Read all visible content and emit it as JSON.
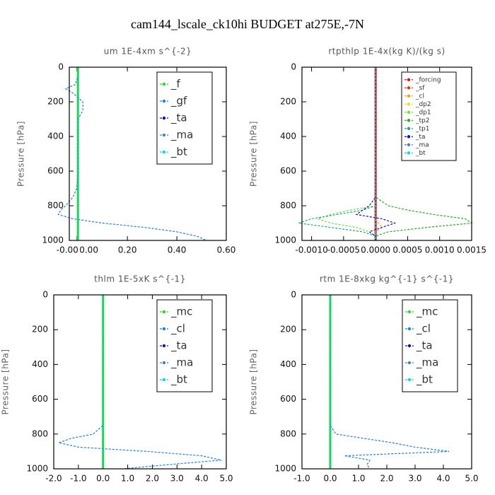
{
  "title": "cam144_lscale_ck10hi  BUDGET at275E,-7N",
  "chart_data": [
    {
      "type": "line",
      "title": "um  1E-4xm s^{-2}",
      "y_label": "Pressure [hPa]",
      "y": [
        0,
        50,
        100,
        125,
        150,
        200,
        250,
        300,
        400,
        500,
        600,
        700,
        750,
        800,
        825,
        850,
        875,
        900,
        925,
        950,
        975,
        1000
      ],
      "xlim": [
        -0.035,
        0.6
      ],
      "xticks": [
        {
          "value": -0.004,
          "label": "-0.00"
        },
        {
          "value": 0,
          "label": "0.00"
        },
        {
          "value": 0.2,
          "label": "0.20"
        },
        {
          "value": 0.4,
          "label": "0.40"
        },
        {
          "value": 0.6,
          "label": "0.60"
        }
      ],
      "ylim": [
        1000,
        0
      ],
      "yticks": [
        0,
        200,
        400,
        600,
        800,
        1000
      ],
      "legend": "upper right",
      "series": [
        {
          "name": "_f",
          "color": "#22dd22",
          "values": [
            0,
            0,
            0,
            0,
            0,
            0,
            0,
            0,
            0,
            0,
            0,
            0,
            0,
            0,
            0,
            0,
            0,
            0,
            0,
            0,
            0,
            0
          ]
        },
        {
          "name": "_gf",
          "color": "#1e7fe8",
          "values": [
            0,
            0,
            -0.01,
            -0.05,
            -0.02,
            0.02,
            0.02,
            0,
            0,
            0,
            0,
            -0.005,
            -0.02,
            -0.05,
            -0.07,
            -0.08,
            -0.02,
            0.1,
            0.27,
            0.4,
            0.48,
            0.52
          ]
        },
        {
          "name": "_ta",
          "color": "#1010c8",
          "values": [
            0,
            0,
            0,
            0,
            0,
            0,
            0,
            0,
            0,
            0,
            0,
            0,
            0,
            0,
            0,
            0,
            0,
            0,
            0,
            0,
            0,
            0
          ]
        },
        {
          "name": "_ma",
          "color": "#4682b4",
          "values": [
            0,
            0,
            0,
            0,
            0,
            0,
            0,
            0,
            0,
            0,
            0,
            0,
            0,
            0,
            0,
            0,
            0,
            0,
            0,
            0,
            0,
            0
          ]
        },
        {
          "name": "_bt",
          "color": "#00d8f0",
          "values": [
            0,
            0,
            0,
            0,
            0,
            0,
            0,
            0,
            0,
            0,
            0,
            0,
            0,
            0,
            0,
            0,
            0,
            0,
            0,
            0,
            0,
            0
          ]
        }
      ]
    },
    {
      "type": "line",
      "title": "rtpthlp  1E-4x(kg K)/(kg s)",
      "y_label": "Pressure [hPa]",
      "y": [
        0,
        50,
        100,
        125,
        150,
        200,
        250,
        300,
        400,
        500,
        600,
        700,
        750,
        800,
        825,
        850,
        875,
        900,
        925,
        950,
        975,
        1000
      ],
      "xlim": [
        -0.00115,
        0.0015
      ],
      "xticks": [
        {
          "value": -0.001,
          "label": "-0.0010"
        },
        {
          "value": -0.0005,
          "label": "-0.0005"
        },
        {
          "value": 0,
          "label": "0.0000"
        },
        {
          "value": 0.0005,
          "label": "0.0005"
        },
        {
          "value": 0.001,
          "label": "0.0010"
        },
        {
          "value": 0.0015,
          "label": "0.0015"
        }
      ],
      "ylim": [
        1000,
        0
      ],
      "yticks": [
        0,
        200,
        400,
        600,
        800,
        1000
      ],
      "legend": "upper right",
      "series": [
        {
          "name": "_forcing",
          "color": "#dd1111",
          "values": [
            0,
            0,
            0,
            0,
            0,
            0,
            0,
            0,
            0,
            0,
            0,
            0,
            0,
            0,
            0,
            0,
            0,
            0,
            0,
            0,
            0,
            0
          ]
        },
        {
          "name": "_sf",
          "color": "#e83010",
          "values": [
            0,
            0,
            0,
            0,
            0,
            0,
            0,
            0,
            0,
            0,
            0,
            0,
            0,
            0,
            0,
            0,
            0,
            0,
            0,
            0,
            0,
            0
          ]
        },
        {
          "name": "_cl",
          "color": "#f0a010",
          "values": [
            0,
            0,
            0,
            0,
            0,
            0,
            0,
            0,
            0,
            0,
            0,
            0,
            0,
            0,
            0,
            0,
            0,
            5e-05,
            0.0001,
            0,
            0,
            0
          ]
        },
        {
          "name": "_dp2",
          "color": "#e8e020",
          "values": [
            0,
            0,
            0,
            0,
            0,
            0,
            0,
            0,
            0,
            0,
            0,
            0,
            0,
            0,
            0,
            0,
            0,
            0,
            0,
            0,
            0,
            0
          ]
        },
        {
          "name": "_dp1",
          "color": "#70e040",
          "values": [
            0,
            0,
            0,
            0,
            0,
            0,
            0,
            0,
            0,
            0,
            0,
            0,
            0,
            0,
            -0.0004,
            -0.0007,
            -0.0009,
            -0.0007,
            -0.0003,
            -0.0001,
            0,
            0
          ]
        },
        {
          "name": "_tp2",
          "color": "#22b022",
          "values": [
            0,
            0,
            0,
            0,
            0,
            0,
            0,
            0,
            0,
            0,
            0,
            0,
            0,
            0.0002,
            0.0005,
            0.0009,
            0.0014,
            0.0015,
            0.0008,
            0.0002,
            0,
            0
          ]
        },
        {
          "name": "_tp1",
          "color": "#20a090",
          "values": [
            0,
            0,
            0,
            0,
            0,
            0,
            0,
            0,
            0,
            0,
            0,
            0,
            0,
            0,
            -0.0002,
            -0.0006,
            -0.001,
            -0.0012,
            -0.0007,
            -0.0002,
            0,
            0
          ]
        },
        {
          "name": "_ta",
          "color": "#1010c8",
          "values": [
            0,
            0,
            0,
            0,
            0,
            0,
            0,
            0,
            0,
            0,
            0,
            0,
            0,
            -0.0001,
            -0.0002,
            -0.0003,
            0.0001,
            0.0003,
            0.0001,
            -0.0001,
            0,
            0
          ]
        },
        {
          "name": "_ma",
          "color": "#4682b4",
          "values": [
            0,
            0,
            0,
            0,
            0,
            0,
            0,
            0,
            0,
            0,
            0,
            0,
            0,
            0,
            0,
            0,
            0,
            0,
            0,
            0,
            0,
            0
          ]
        },
        {
          "name": "_bt",
          "color": "#00d8f0",
          "values": [
            0,
            0,
            0,
            0,
            0,
            0,
            0,
            0,
            0,
            0,
            0,
            0,
            0,
            0,
            0,
            0,
            0,
            0,
            0,
            0,
            0,
            0
          ]
        }
      ]
    },
    {
      "type": "line",
      "title": "thlm  1E-5xK s^{-1}",
      "y_label": "Pressure [hPa]",
      "y": [
        0,
        50,
        100,
        125,
        150,
        200,
        250,
        300,
        400,
        500,
        600,
        700,
        750,
        800,
        825,
        850,
        875,
        900,
        925,
        950,
        975,
        1000
      ],
      "xlim": [
        -2,
        5
      ],
      "xticks": [
        {
          "value": -2,
          "label": "-2.0"
        },
        {
          "value": -1,
          "label": "-1.0"
        },
        {
          "value": 0,
          "label": "0.0"
        },
        {
          "value": 1,
          "label": "1.0"
        },
        {
          "value": 2,
          "label": "2.0"
        },
        {
          "value": 3,
          "label": "3.0"
        },
        {
          "value": 4,
          "label": "4.0"
        },
        {
          "value": 5,
          "label": "5.0"
        }
      ],
      "ylim": [
        1000,
        0
      ],
      "yticks": [
        0,
        200,
        400,
        600,
        800,
        1000
      ],
      "legend": "upper right",
      "series": [
        {
          "name": "_mc",
          "color": "#22dd22",
          "values": [
            0,
            0,
            0,
            0,
            0,
            0,
            0,
            0,
            0,
            0,
            0,
            0,
            0,
            0,
            0,
            0,
            0,
            0,
            0,
            0,
            0,
            0
          ]
        },
        {
          "name": "_cl",
          "color": "#1e7fe8",
          "values": [
            0,
            0,
            0,
            0,
            0,
            0,
            0,
            0,
            0,
            0,
            0,
            0,
            0,
            -0.4,
            -1.3,
            -1.8,
            -1.0,
            1.8,
            4.0,
            4.8,
            2.7,
            0.8
          ]
        },
        {
          "name": "_ta",
          "color": "#1010c8",
          "values": [
            0,
            0,
            0,
            0,
            0,
            0,
            0,
            0,
            0,
            0,
            0,
            0,
            0,
            0,
            0,
            0,
            0,
            0,
            0,
            0,
            0,
            0
          ]
        },
        {
          "name": "_ma",
          "color": "#4682b4",
          "values": [
            0,
            0,
            0,
            0,
            0,
            0,
            0,
            0,
            0,
            0,
            0,
            0,
            0,
            0,
            0,
            0,
            0,
            0,
            0,
            0,
            0,
            0
          ]
        },
        {
          "name": "_bt",
          "color": "#00d8f0",
          "values": [
            0,
            0,
            0,
            0,
            0,
            0,
            0,
            0,
            0,
            0,
            0,
            0,
            0,
            0,
            0,
            0,
            0,
            0,
            0,
            0,
            0,
            0
          ]
        }
      ]
    },
    {
      "type": "line",
      "title": "rtm  1E-8xkg kg^{-1} s^{-1}",
      "y_label": "Pressure [hPa]",
      "y": [
        0,
        50,
        100,
        125,
        150,
        200,
        250,
        300,
        400,
        500,
        600,
        700,
        750,
        800,
        825,
        850,
        875,
        900,
        925,
        950,
        975,
        1000
      ],
      "xlim": [
        -1,
        5
      ],
      "xticks": [
        {
          "value": -1,
          "label": "-1.0"
        },
        {
          "value": 0,
          "label": "0.0"
        },
        {
          "value": 1,
          "label": "1.0"
        },
        {
          "value": 2,
          "label": "2.0"
        },
        {
          "value": 3,
          "label": "3.0"
        },
        {
          "value": 4,
          "label": "4.0"
        },
        {
          "value": 5,
          "label": "5.0"
        }
      ],
      "ylim": [
        1000,
        0
      ],
      "yticks": [
        0,
        200,
        400,
        600,
        800,
        1000
      ],
      "legend": "upper right",
      "series": [
        {
          "name": "_mc",
          "color": "#22dd22",
          "values": [
            0,
            0,
            0,
            0,
            0,
            0,
            0,
            0,
            0,
            0,
            0,
            0,
            0,
            0,
            0,
            0,
            0,
            0,
            0,
            0,
            0,
            0
          ]
        },
        {
          "name": "_cl",
          "color": "#1e7fe8",
          "values": [
            0,
            0,
            0,
            0,
            0,
            0,
            0,
            0,
            0,
            0,
            0,
            0,
            0,
            0.2,
            1.2,
            2.2,
            3.0,
            4.2,
            0.5,
            1.4,
            1.3,
            1.4
          ]
        },
        {
          "name": "_ta",
          "color": "#1010c8",
          "values": [
            0,
            0,
            0,
            0,
            0,
            0,
            0,
            0,
            0,
            0,
            0,
            0,
            0,
            0,
            0,
            0,
            0,
            0,
            0,
            0,
            0,
            0
          ]
        },
        {
          "name": "_ma",
          "color": "#4682b4",
          "values": [
            0,
            0,
            0,
            0,
            0,
            0,
            0,
            0,
            0,
            0,
            0,
            0,
            0,
            0,
            0,
            0,
            0,
            0,
            0,
            0,
            0,
            0
          ]
        },
        {
          "name": "_bt",
          "color": "#00d8f0",
          "values": [
            0,
            0,
            0,
            0,
            0,
            0,
            0,
            0,
            0,
            0,
            0,
            0,
            0,
            0,
            0,
            0,
            0,
            0,
            0,
            0,
            0,
            0
          ]
        }
      ]
    }
  ]
}
